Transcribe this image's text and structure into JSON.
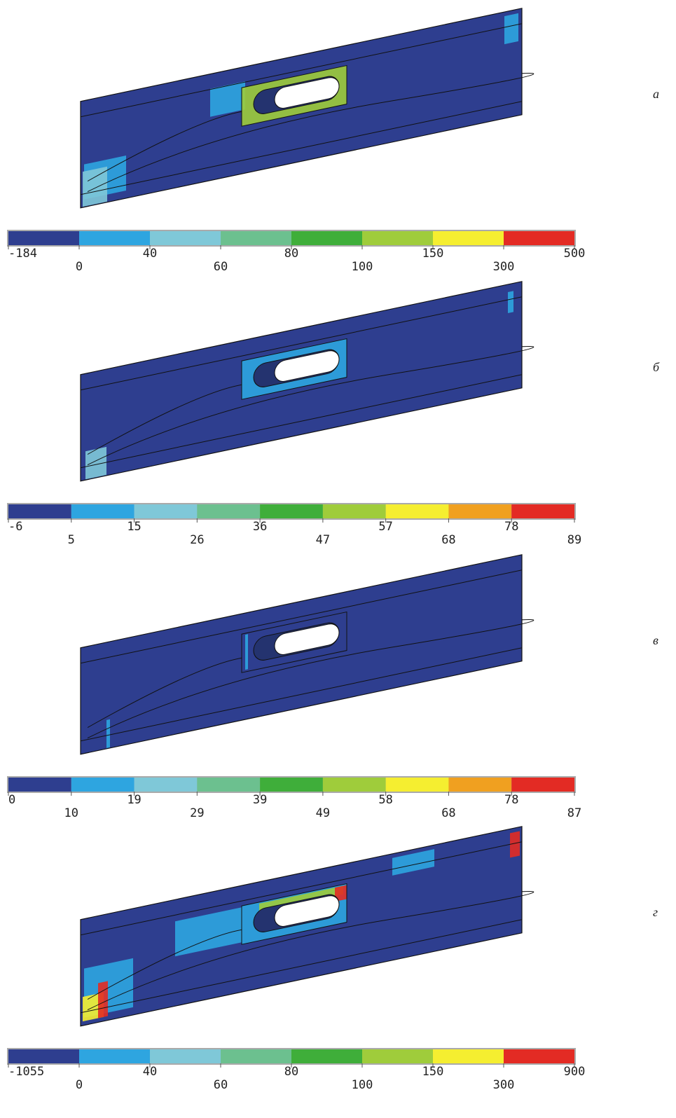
{
  "panels": [
    {
      "label": "а",
      "legend": {
        "colors": [
          "#2e3e8f",
          "#2ea5e0",
          "#7fc8d8",
          "#6cc08f",
          "#3fae3a",
          "#9fcc3b",
          "#f5ee30",
          "#e32b24"
        ],
        "labels": [
          "-184",
          "0",
          "40",
          "60",
          "80",
          "100",
          "150",
          "300",
          "500"
        ]
      }
    },
    {
      "label": "б",
      "legend": {
        "colors": [
          "#2e3e8f",
          "#2ea5e0",
          "#7fc8d8",
          "#6cc08f",
          "#3fae3a",
          "#9fcc3b",
          "#f5ee30",
          "#f0a020",
          "#e32b24"
        ],
        "labels": [
          "-6",
          "5",
          "15",
          "26",
          "36",
          "47",
          "57",
          "68",
          "78",
          "89"
        ]
      }
    },
    {
      "label": "в",
      "legend": {
        "colors": [
          "#2e3e8f",
          "#2ea5e0",
          "#7fc8d8",
          "#6cc08f",
          "#3fae3a",
          "#9fcc3b",
          "#f5ee30",
          "#f0a020",
          "#e32b24"
        ],
        "labels": [
          "0",
          "10",
          "19",
          "29",
          "39",
          "49",
          "58",
          "68",
          "78",
          "87"
        ]
      }
    },
    {
      "label": "г",
      "legend": {
        "colors": [
          "#2e3e8f",
          "#2ea5e0",
          "#7fc8d8",
          "#6cc08f",
          "#3fae3a",
          "#9fcc3b",
          "#f5ee30",
          "#e32b24"
        ],
        "labels": [
          "-1055",
          "0",
          "40",
          "60",
          "80",
          "100",
          "150",
          "300",
          "900"
        ]
      }
    }
  ]
}
